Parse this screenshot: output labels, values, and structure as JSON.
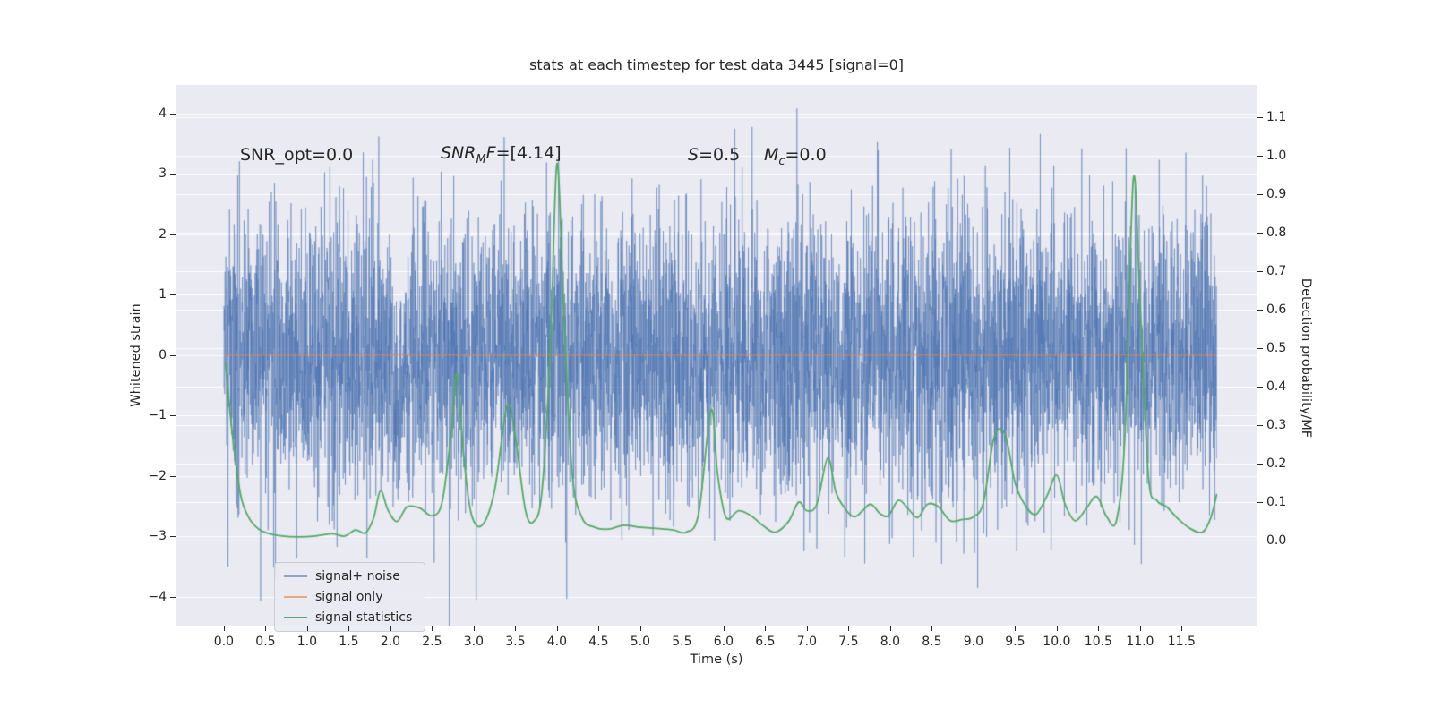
{
  "annotations": {
    "snr_opt": "SNR_opt=0.0",
    "snr_mf_pre": "SNR",
    "snr_mf_sub": "M",
    "snr_mf_mid": "F",
    "snr_mf_val": "=[4.14]",
    "s_pre": "S",
    "s_val": "=0.5",
    "mc_pre": "M",
    "mc_sub": "c",
    "mc_val": "=0.0"
  },
  "chart_data": {
    "type": "line",
    "title": "stats at each timestep for test data 3445 [signal=0]",
    "xlabel": "Time (s)",
    "ylabel_left": "Whitened strain",
    "ylabel_right": "Detection probability/MF",
    "xlim": [
      -0.58,
      12.41
    ],
    "ylim_left": [
      -4.49,
      4.47
    ],
    "ylim_right": [
      -0.223,
      1.184
    ],
    "x_ticks": [
      0.0,
      0.5,
      1.0,
      1.5,
      2.0,
      2.5,
      3.0,
      3.5,
      4.0,
      4.5,
      5.0,
      5.5,
      6.0,
      6.5,
      7.0,
      7.5,
      8.0,
      8.5,
      9.0,
      9.5,
      10.0,
      10.5,
      11.0,
      11.5
    ],
    "y_ticks_left": [
      -4,
      -3,
      -2,
      -1,
      0,
      1,
      2,
      3,
      4
    ],
    "y_ticks_right": [
      0.0,
      0.1,
      0.2,
      0.3,
      0.4,
      0.5,
      0.6,
      0.7,
      0.8,
      0.9,
      1.0,
      1.1
    ],
    "grid": {
      "horizontal": true,
      "color": "#ffffff"
    },
    "background": "#eaeaf2",
    "legend": {
      "position": "lower left",
      "entries": [
        {
          "label": "signal+ noise",
          "color": "#8ba3cb"
        },
        {
          "label": "signal only",
          "color": "#e8a87e"
        },
        {
          "label": "signal statistics",
          "color": "#55a868"
        }
      ]
    },
    "series": [
      {
        "name": "signal+ noise",
        "axis": "left",
        "kind": "gaussian_noise",
        "color": "rgba(76,114,176,0.62)",
        "linewidth": 0.8,
        "t_start": 0.0,
        "t_end": 11.92,
        "n": 6000,
        "sigma": 1.17,
        "seed": 3445,
        "spikes": [
          [
            0.05,
            -3.5
          ],
          [
            1.86,
            3.62
          ],
          [
            3.03,
            -4.05
          ],
          [
            4.02,
            3.3
          ],
          [
            6.88,
            4.08
          ],
          [
            9.05,
            -3.85
          ],
          [
            10.3,
            3.42
          ],
          [
            11.55,
            3.35
          ]
        ]
      },
      {
        "name": "signal only",
        "axis": "left",
        "kind": "constant",
        "value": 0,
        "color": "rgba(221,132,82,0.9)",
        "linewidth": 1.1,
        "t_start": 0.0,
        "t_end": 11.92
      },
      {
        "name": "signal statistics",
        "axis": "right",
        "kind": "smooth_line",
        "color": "#55a868",
        "linewidth": 1.8,
        "points": [
          [
            0.02,
            0.46
          ],
          [
            0.1,
            0.28
          ],
          [
            0.2,
            0.12
          ],
          [
            0.3,
            0.06
          ],
          [
            0.42,
            0.03
          ],
          [
            0.55,
            0.018
          ],
          [
            0.7,
            0.012
          ],
          [
            0.9,
            0.01
          ],
          [
            1.1,
            0.012
          ],
          [
            1.3,
            0.018
          ],
          [
            1.45,
            0.012
          ],
          [
            1.58,
            0.028
          ],
          [
            1.7,
            0.02
          ],
          [
            1.8,
            0.06
          ],
          [
            1.88,
            0.13
          ],
          [
            1.97,
            0.08
          ],
          [
            2.08,
            0.05
          ],
          [
            2.2,
            0.088
          ],
          [
            2.35,
            0.085
          ],
          [
            2.5,
            0.065
          ],
          [
            2.62,
            0.1
          ],
          [
            2.73,
            0.28
          ],
          [
            2.8,
            0.435
          ],
          [
            2.88,
            0.22
          ],
          [
            2.97,
            0.07
          ],
          [
            3.1,
            0.04
          ],
          [
            3.25,
            0.13
          ],
          [
            3.4,
            0.35
          ],
          [
            3.5,
            0.27
          ],
          [
            3.62,
            0.08
          ],
          [
            3.72,
            0.05
          ],
          [
            3.82,
            0.13
          ],
          [
            3.92,
            0.5
          ],
          [
            4.0,
            0.98
          ],
          [
            4.08,
            0.6
          ],
          [
            4.18,
            0.18
          ],
          [
            4.3,
            0.06
          ],
          [
            4.45,
            0.035
          ],
          [
            4.62,
            0.03
          ],
          [
            4.8,
            0.04
          ],
          [
            5.0,
            0.035
          ],
          [
            5.2,
            0.032
          ],
          [
            5.4,
            0.028
          ],
          [
            5.55,
            0.022
          ],
          [
            5.7,
            0.07
          ],
          [
            5.85,
            0.34
          ],
          [
            5.93,
            0.17
          ],
          [
            6.03,
            0.06
          ],
          [
            6.18,
            0.078
          ],
          [
            6.33,
            0.065
          ],
          [
            6.48,
            0.038
          ],
          [
            6.62,
            0.022
          ],
          [
            6.78,
            0.05
          ],
          [
            6.9,
            0.1
          ],
          [
            7.0,
            0.078
          ],
          [
            7.12,
            0.095
          ],
          [
            7.25,
            0.215
          ],
          [
            7.35,
            0.125
          ],
          [
            7.47,
            0.08
          ],
          [
            7.57,
            0.062
          ],
          [
            7.67,
            0.078
          ],
          [
            7.77,
            0.095
          ],
          [
            7.88,
            0.07
          ],
          [
            7.98,
            0.065
          ],
          [
            8.1,
            0.105
          ],
          [
            8.22,
            0.082
          ],
          [
            8.33,
            0.06
          ],
          [
            8.45,
            0.095
          ],
          [
            8.58,
            0.088
          ],
          [
            8.72,
            0.052
          ],
          [
            8.87,
            0.055
          ],
          [
            9.0,
            0.062
          ],
          [
            9.12,
            0.1
          ],
          [
            9.25,
            0.27
          ],
          [
            9.38,
            0.275
          ],
          [
            9.5,
            0.15
          ],
          [
            9.62,
            0.092
          ],
          [
            9.75,
            0.068
          ],
          [
            9.88,
            0.115
          ],
          [
            10.0,
            0.17
          ],
          [
            10.1,
            0.095
          ],
          [
            10.22,
            0.052
          ],
          [
            10.35,
            0.082
          ],
          [
            10.48,
            0.115
          ],
          [
            10.6,
            0.062
          ],
          [
            10.72,
            0.055
          ],
          [
            10.82,
            0.28
          ],
          [
            10.92,
            0.94
          ],
          [
            11.0,
            0.62
          ],
          [
            11.1,
            0.17
          ],
          [
            11.2,
            0.105
          ],
          [
            11.32,
            0.088
          ],
          [
            11.45,
            0.058
          ],
          [
            11.6,
            0.032
          ],
          [
            11.75,
            0.022
          ],
          [
            11.85,
            0.06
          ],
          [
            11.92,
            0.12
          ]
        ]
      }
    ]
  }
}
